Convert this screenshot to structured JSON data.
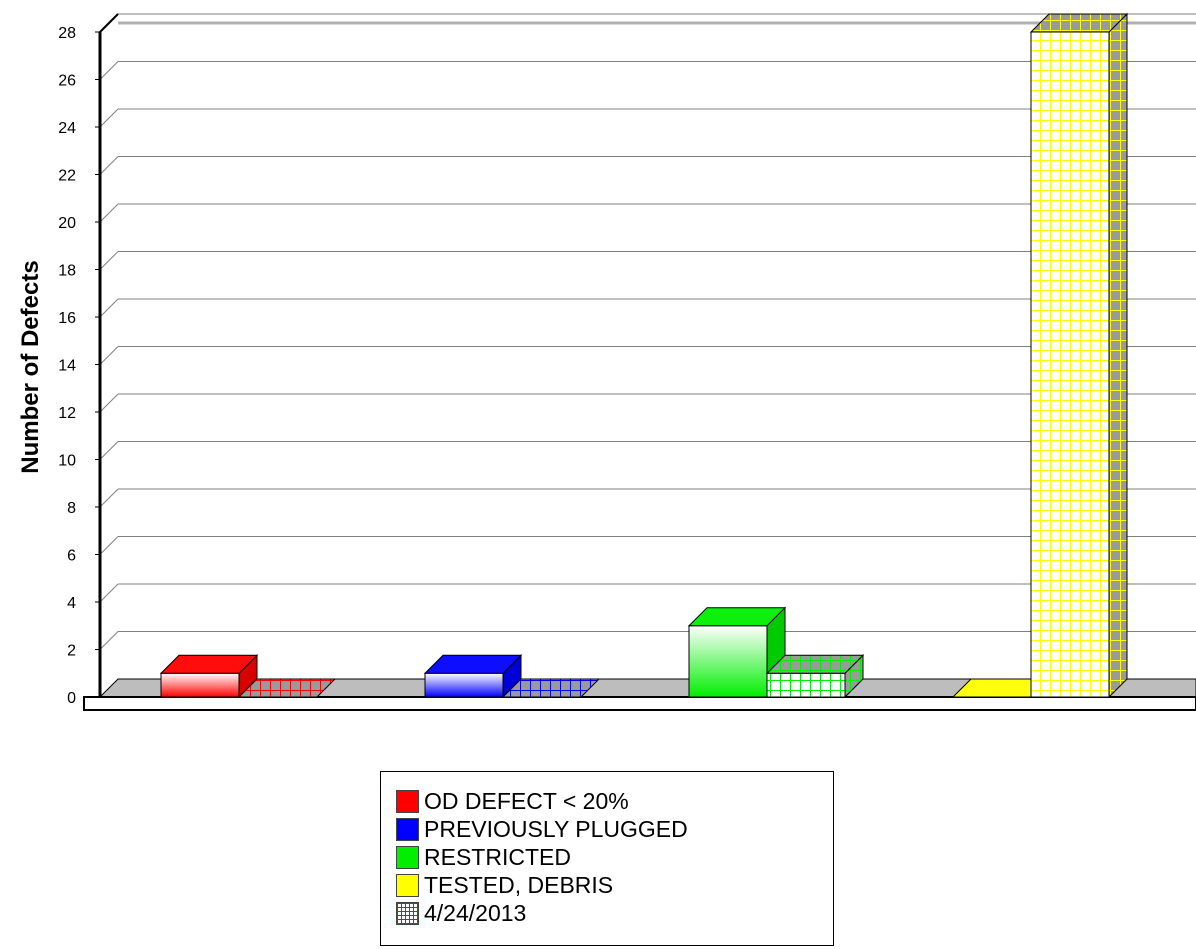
{
  "chart_data": {
    "type": "bar",
    "ylabel": "Number of Defects",
    "xlabel": "",
    "ylim": [
      0,
      28
    ],
    "yticks": [
      0,
      2,
      4,
      6,
      8,
      10,
      12,
      14,
      16,
      18,
      20,
      22,
      24,
      26,
      28
    ],
    "grid": true,
    "legend_position": "bottom-center",
    "categories": [
      "OD DEFECT < 20%",
      "PREVIOUSLY PLUGGED",
      "RESTRICTED",
      "TESTED, DEBRIS"
    ],
    "series": [
      {
        "values": [
          1,
          1,
          3,
          0
        ],
        "pattern": "solid"
      },
      {
        "name": "4/24/2013",
        "values": [
          0,
          0,
          1,
          28
        ],
        "pattern": "grid"
      }
    ],
    "category_colors": [
      "#ff0000",
      "#0000ff",
      "#00ee00",
      "#ffff00"
    ]
  },
  "legend": {
    "items": [
      {
        "label": "OD DEFECT < 20%",
        "color": "#ff0000",
        "pattern": "solid"
      },
      {
        "label": "PREVIOUSLY PLUGGED",
        "color": "#0000ff",
        "pattern": "solid"
      },
      {
        "label": "RESTRICTED",
        "color": "#00ee00",
        "pattern": "solid"
      },
      {
        "label": "TESTED, DEBRIS",
        "color": "#ffff00",
        "pattern": "solid"
      },
      {
        "label": "4/24/2013",
        "color": "#ff0000",
        "pattern": "grid"
      }
    ]
  }
}
